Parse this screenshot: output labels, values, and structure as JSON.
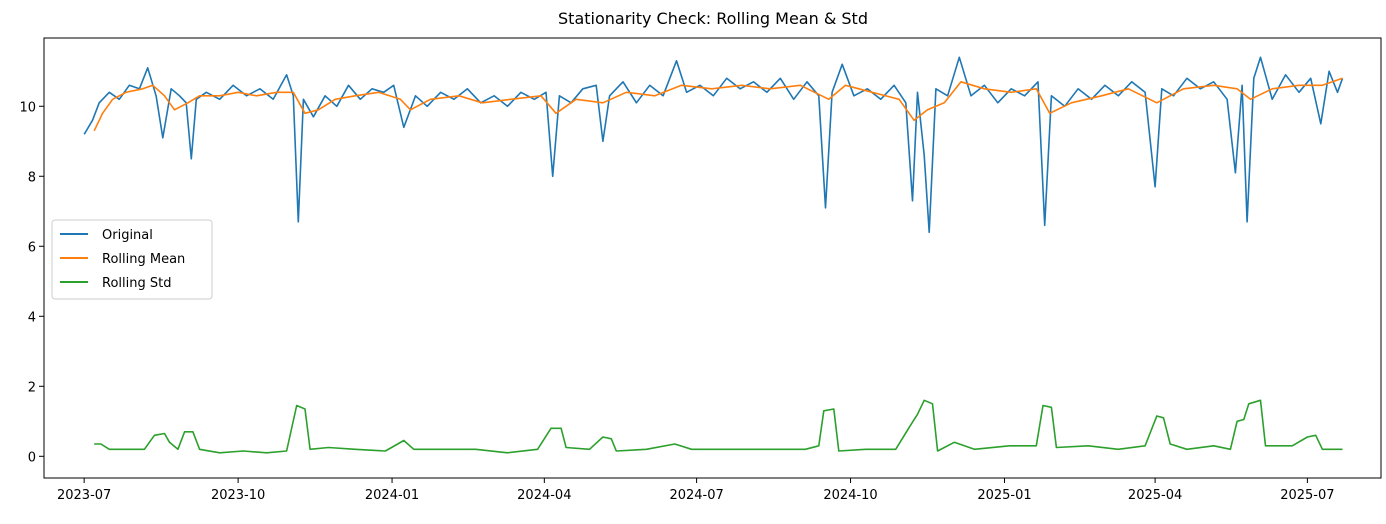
{
  "chart_data": {
    "type": "line",
    "title": "Stationarity Check: Rolling Mean & Std",
    "xlabel": "",
    "ylabel": "",
    "x_axis_type": "date",
    "xlim": [
      "2023-06-07",
      "2025-08-14"
    ],
    "ylim": [
      -0.62,
      11.95
    ],
    "x_ticks": [
      {
        "date": "2023-07-01",
        "label": "2023-07"
      },
      {
        "date": "2023-10-01",
        "label": "2023-10"
      },
      {
        "date": "2024-01-01",
        "label": "2024-01"
      },
      {
        "date": "2024-04-01",
        "label": "2024-04"
      },
      {
        "date": "2024-07-01",
        "label": "2024-07"
      },
      {
        "date": "2024-10-01",
        "label": "2024-10"
      },
      {
        "date": "2025-01-01",
        "label": "2025-01"
      },
      {
        "date": "2025-04-01",
        "label": "2025-04"
      },
      {
        "date": "2025-07-01",
        "label": "2025-07"
      }
    ],
    "y_ticks": [
      0,
      2,
      4,
      6,
      8,
      10
    ],
    "grid": false,
    "legend_position": "center-left",
    "series": [
      {
        "name": "Original",
        "color": "#1f77b4",
        "points": [
          [
            "2023-07-01",
            9.2
          ],
          [
            "2023-07-06",
            9.6
          ],
          [
            "2023-07-10",
            10.1
          ],
          [
            "2023-07-16",
            10.4
          ],
          [
            "2023-07-22",
            10.2
          ],
          [
            "2023-07-28",
            10.6
          ],
          [
            "2023-08-03",
            10.5
          ],
          [
            "2023-08-08",
            11.1
          ],
          [
            "2023-08-13",
            10.3
          ],
          [
            "2023-08-17",
            9.1
          ],
          [
            "2023-08-22",
            10.5
          ],
          [
            "2023-08-27",
            10.3
          ],
          [
            "2023-08-31",
            10.1
          ],
          [
            "2023-09-03",
            8.5
          ],
          [
            "2023-09-06",
            10.2
          ],
          [
            "2023-09-12",
            10.4
          ],
          [
            "2023-09-20",
            10.2
          ],
          [
            "2023-09-28",
            10.6
          ],
          [
            "2023-10-06",
            10.3
          ],
          [
            "2023-10-14",
            10.5
          ],
          [
            "2023-10-22",
            10.2
          ],
          [
            "2023-10-30",
            10.9
          ],
          [
            "2023-11-03",
            10.3
          ],
          [
            "2023-11-06",
            6.7
          ],
          [
            "2023-11-09",
            10.2
          ],
          [
            "2023-11-15",
            9.7
          ],
          [
            "2023-11-22",
            10.3
          ],
          [
            "2023-11-29",
            10.0
          ],
          [
            "2023-12-06",
            10.6
          ],
          [
            "2023-12-13",
            10.2
          ],
          [
            "2023-12-20",
            10.5
          ],
          [
            "2023-12-27",
            10.4
          ],
          [
            "2024-01-02",
            10.6
          ],
          [
            "2024-01-08",
            9.4
          ],
          [
            "2024-01-15",
            10.3
          ],
          [
            "2024-01-22",
            10.0
          ],
          [
            "2024-01-30",
            10.4
          ],
          [
            "2024-02-07",
            10.2
          ],
          [
            "2024-02-15",
            10.5
          ],
          [
            "2024-02-23",
            10.1
          ],
          [
            "2024-03-02",
            10.3
          ],
          [
            "2024-03-10",
            10.0
          ],
          [
            "2024-03-18",
            10.4
          ],
          [
            "2024-03-26",
            10.2
          ],
          [
            "2024-04-02",
            10.4
          ],
          [
            "2024-04-06",
            8.0
          ],
          [
            "2024-04-10",
            10.3
          ],
          [
            "2024-04-17",
            10.1
          ],
          [
            "2024-04-24",
            10.5
          ],
          [
            "2024-05-02",
            10.6
          ],
          [
            "2024-05-06",
            9.0
          ],
          [
            "2024-05-10",
            10.3
          ],
          [
            "2024-05-18",
            10.7
          ],
          [
            "2024-05-26",
            10.1
          ],
          [
            "2024-06-03",
            10.6
          ],
          [
            "2024-06-11",
            10.3
          ],
          [
            "2024-06-19",
            11.3
          ],
          [
            "2024-06-25",
            10.4
          ],
          [
            "2024-07-03",
            10.6
          ],
          [
            "2024-07-11",
            10.3
          ],
          [
            "2024-07-19",
            10.8
          ],
          [
            "2024-07-27",
            10.5
          ],
          [
            "2024-08-04",
            10.7
          ],
          [
            "2024-08-12",
            10.4
          ],
          [
            "2024-08-20",
            10.8
          ],
          [
            "2024-08-28",
            10.2
          ],
          [
            "2024-09-05",
            10.7
          ],
          [
            "2024-09-12",
            10.3
          ],
          [
            "2024-09-16",
            7.1
          ],
          [
            "2024-09-20",
            10.4
          ],
          [
            "2024-09-26",
            11.2
          ],
          [
            "2024-10-03",
            10.3
          ],
          [
            "2024-10-11",
            10.5
          ],
          [
            "2024-10-19",
            10.2
          ],
          [
            "2024-10-27",
            10.6
          ],
          [
            "2024-11-03",
            10.1
          ],
          [
            "2024-11-07",
            7.3
          ],
          [
            "2024-11-10",
            10.4
          ],
          [
            "2024-11-14",
            8.6
          ],
          [
            "2024-11-17",
            6.4
          ],
          [
            "2024-11-21",
            10.5
          ],
          [
            "2024-11-28",
            10.3
          ],
          [
            "2024-12-05",
            11.4
          ],
          [
            "2024-12-12",
            10.3
          ],
          [
            "2024-12-20",
            10.6
          ],
          [
            "2024-12-28",
            10.1
          ],
          [
            "2025-01-05",
            10.5
          ],
          [
            "2025-01-13",
            10.3
          ],
          [
            "2025-01-21",
            10.7
          ],
          [
            "2025-01-25",
            6.6
          ],
          [
            "2025-01-29",
            10.3
          ],
          [
            "2025-02-06",
            10.0
          ],
          [
            "2025-02-14",
            10.5
          ],
          [
            "2025-02-22",
            10.2
          ],
          [
            "2025-03-02",
            10.6
          ],
          [
            "2025-03-10",
            10.3
          ],
          [
            "2025-03-18",
            10.7
          ],
          [
            "2025-03-26",
            10.4
          ],
          [
            "2025-04-01",
            7.7
          ],
          [
            "2025-04-05",
            10.5
          ],
          [
            "2025-04-12",
            10.3
          ],
          [
            "2025-04-20",
            10.8
          ],
          [
            "2025-04-28",
            10.5
          ],
          [
            "2025-05-06",
            10.7
          ],
          [
            "2025-05-14",
            10.2
          ],
          [
            "2025-05-19",
            8.1
          ],
          [
            "2025-05-23",
            10.6
          ],
          [
            "2025-05-26",
            6.7
          ],
          [
            "2025-05-30",
            10.8
          ],
          [
            "2025-06-03",
            11.4
          ],
          [
            "2025-06-10",
            10.2
          ],
          [
            "2025-06-18",
            10.9
          ],
          [
            "2025-06-26",
            10.4
          ],
          [
            "2025-07-03",
            10.8
          ],
          [
            "2025-07-09",
            9.5
          ],
          [
            "2025-07-14",
            11.0
          ],
          [
            "2025-07-19",
            10.4
          ],
          [
            "2025-07-22",
            10.8
          ]
        ]
      },
      {
        "name": "Rolling Mean",
        "color": "#ff7f0e",
        "points": [
          [
            "2023-07-07",
            9.3
          ],
          [
            "2023-07-12",
            9.8
          ],
          [
            "2023-07-18",
            10.2
          ],
          [
            "2023-07-26",
            10.4
          ],
          [
            "2023-08-05",
            10.5
          ],
          [
            "2023-08-11",
            10.6
          ],
          [
            "2023-08-18",
            10.3
          ],
          [
            "2023-08-24",
            9.9
          ],
          [
            "2023-09-01",
            10.1
          ],
          [
            "2023-09-08",
            10.3
          ],
          [
            "2023-09-20",
            10.3
          ],
          [
            "2023-10-01",
            10.4
          ],
          [
            "2023-10-12",
            10.3
          ],
          [
            "2023-10-24",
            10.4
          ],
          [
            "2023-11-03",
            10.4
          ],
          [
            "2023-11-10",
            9.8
          ],
          [
            "2023-11-18",
            9.9
          ],
          [
            "2023-11-28",
            10.2
          ],
          [
            "2023-12-10",
            10.3
          ],
          [
            "2023-12-24",
            10.4
          ],
          [
            "2024-01-06",
            10.2
          ],
          [
            "2024-01-12",
            9.9
          ],
          [
            "2024-01-24",
            10.2
          ],
          [
            "2024-02-10",
            10.3
          ],
          [
            "2024-02-24",
            10.1
          ],
          [
            "2024-03-12",
            10.2
          ],
          [
            "2024-03-30",
            10.3
          ],
          [
            "2024-04-08",
            9.8
          ],
          [
            "2024-04-20",
            10.2
          ],
          [
            "2024-05-06",
            10.1
          ],
          [
            "2024-05-20",
            10.4
          ],
          [
            "2024-06-06",
            10.3
          ],
          [
            "2024-06-22",
            10.6
          ],
          [
            "2024-07-10",
            10.5
          ],
          [
            "2024-07-28",
            10.6
          ],
          [
            "2024-08-14",
            10.5
          ],
          [
            "2024-09-01",
            10.6
          ],
          [
            "2024-09-18",
            10.2
          ],
          [
            "2024-09-28",
            10.6
          ],
          [
            "2024-10-14",
            10.4
          ],
          [
            "2024-10-30",
            10.2
          ],
          [
            "2024-11-08",
            9.6
          ],
          [
            "2024-11-16",
            9.9
          ],
          [
            "2024-11-26",
            10.1
          ],
          [
            "2024-12-06",
            10.7
          ],
          [
            "2024-12-20",
            10.5
          ],
          [
            "2025-01-05",
            10.4
          ],
          [
            "2025-01-20",
            10.5
          ],
          [
            "2025-01-28",
            9.8
          ],
          [
            "2025-02-10",
            10.1
          ],
          [
            "2025-02-28",
            10.3
          ],
          [
            "2025-03-16",
            10.5
          ],
          [
            "2025-04-02",
            10.1
          ],
          [
            "2025-04-18",
            10.5
          ],
          [
            "2025-05-06",
            10.6
          ],
          [
            "2025-05-20",
            10.5
          ],
          [
            "2025-05-28",
            10.2
          ],
          [
            "2025-06-10",
            10.5
          ],
          [
            "2025-06-26",
            10.6
          ],
          [
            "2025-07-10",
            10.6
          ],
          [
            "2025-07-22",
            10.8
          ]
        ]
      },
      {
        "name": "Rolling Std",
        "color": "#2ca02c",
        "points": [
          [
            "2023-07-07",
            0.35
          ],
          [
            "2023-07-11",
            0.35
          ],
          [
            "2023-07-16",
            0.2
          ],
          [
            "2023-07-28",
            0.2
          ],
          [
            "2023-08-06",
            0.2
          ],
          [
            "2023-08-12",
            0.6
          ],
          [
            "2023-08-18",
            0.65
          ],
          [
            "2023-08-21",
            0.4
          ],
          [
            "2023-08-26",
            0.2
          ],
          [
            "2023-08-30",
            0.7
          ],
          [
            "2023-09-04",
            0.7
          ],
          [
            "2023-09-08",
            0.2
          ],
          [
            "2023-09-20",
            0.1
          ],
          [
            "2023-10-04",
            0.15
          ],
          [
            "2023-10-18",
            0.1
          ],
          [
            "2023-10-30",
            0.15
          ],
          [
            "2023-11-05",
            1.45
          ],
          [
            "2023-11-10",
            1.35
          ],
          [
            "2023-11-13",
            0.2
          ],
          [
            "2023-11-24",
            0.25
          ],
          [
            "2023-12-10",
            0.2
          ],
          [
            "2023-12-28",
            0.15
          ],
          [
            "2024-01-08",
            0.45
          ],
          [
            "2024-01-14",
            0.2
          ],
          [
            "2024-02-01",
            0.2
          ],
          [
            "2024-02-20",
            0.2
          ],
          [
            "2024-03-10",
            0.1
          ],
          [
            "2024-03-28",
            0.2
          ],
          [
            "2024-04-05",
            0.8
          ],
          [
            "2024-04-11",
            0.8
          ],
          [
            "2024-04-14",
            0.25
          ],
          [
            "2024-04-28",
            0.2
          ],
          [
            "2024-05-06",
            0.55
          ],
          [
            "2024-05-11",
            0.5
          ],
          [
            "2024-05-14",
            0.15
          ],
          [
            "2024-06-01",
            0.2
          ],
          [
            "2024-06-18",
            0.35
          ],
          [
            "2024-06-28",
            0.2
          ],
          [
            "2024-07-20",
            0.2
          ],
          [
            "2024-08-14",
            0.2
          ],
          [
            "2024-09-04",
            0.2
          ],
          [
            "2024-09-12",
            0.3
          ],
          [
            "2024-09-15",
            1.3
          ],
          [
            "2024-09-21",
            1.35
          ],
          [
            "2024-09-24",
            0.15
          ],
          [
            "2024-10-10",
            0.2
          ],
          [
            "2024-10-28",
            0.2
          ],
          [
            "2024-11-06",
            0.9
          ],
          [
            "2024-11-10",
            1.2
          ],
          [
            "2024-11-14",
            1.6
          ],
          [
            "2024-11-19",
            1.5
          ],
          [
            "2024-11-22",
            0.15
          ],
          [
            "2024-12-02",
            0.4
          ],
          [
            "2024-12-14",
            0.2
          ],
          [
            "2025-01-04",
            0.3
          ],
          [
            "2025-01-20",
            0.3
          ],
          [
            "2025-01-24",
            1.45
          ],
          [
            "2025-01-29",
            1.4
          ],
          [
            "2025-02-01",
            0.25
          ],
          [
            "2025-02-20",
            0.3
          ],
          [
            "2025-03-10",
            0.2
          ],
          [
            "2025-03-26",
            0.3
          ],
          [
            "2025-04-02",
            1.15
          ],
          [
            "2025-04-06",
            1.1
          ],
          [
            "2025-04-10",
            0.35
          ],
          [
            "2025-04-20",
            0.2
          ],
          [
            "2025-05-06",
            0.3
          ],
          [
            "2025-05-16",
            0.2
          ],
          [
            "2025-05-20",
            1.0
          ],
          [
            "2025-05-24",
            1.05
          ],
          [
            "2025-05-27",
            1.5
          ],
          [
            "2025-06-03",
            1.6
          ],
          [
            "2025-06-06",
            0.3
          ],
          [
            "2025-06-22",
            0.3
          ],
          [
            "2025-07-01",
            0.55
          ],
          [
            "2025-07-06",
            0.6
          ],
          [
            "2025-07-10",
            0.2
          ],
          [
            "2025-07-22",
            0.2
          ]
        ]
      }
    ]
  }
}
